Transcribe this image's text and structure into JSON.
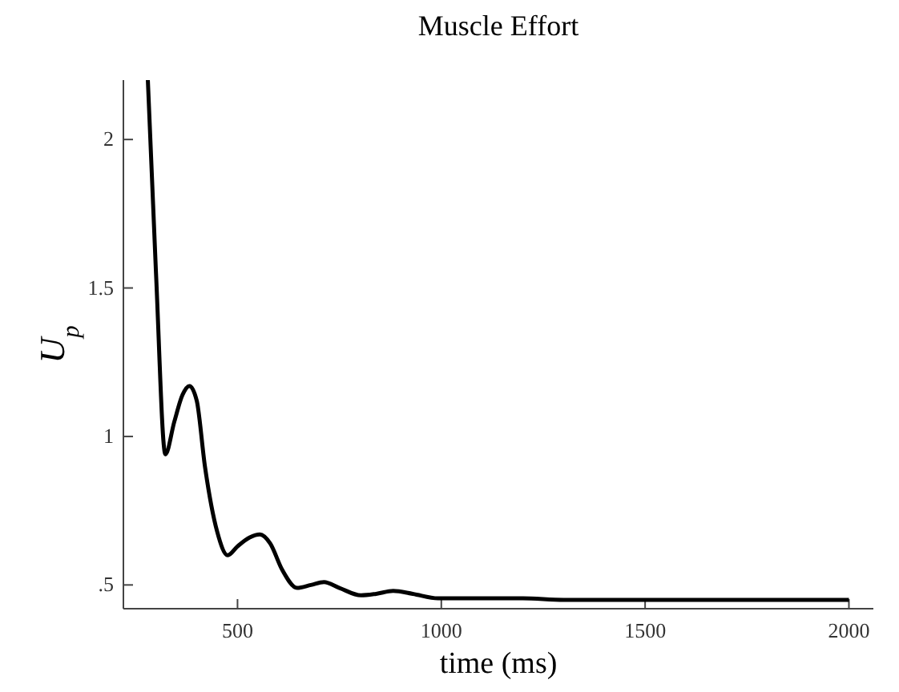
{
  "chart_data": {
    "type": "line",
    "title": "Muscle Effort",
    "xlabel": "time (ms)",
    "ylabel": "U$_{p}$",
    "x": [
      280,
      300,
      323,
      345,
      365,
      382,
      400,
      420,
      450,
      476,
      500,
      530,
      555,
      580,
      610,
      646,
      680,
      712,
      750,
      803,
      840,
      882,
      930,
      992,
      1100,
      1200,
      1300,
      1500,
      1700,
      2000
    ],
    "series": [
      {
        "color": "#000000",
        "values": [
          2.2,
          1.55,
          0.94,
          1.05,
          1.14,
          1.17,
          1.12,
          0.9,
          0.68,
          0.6,
          0.63,
          0.66,
          0.67,
          0.64,
          0.55,
          0.49,
          0.5,
          0.51,
          0.49,
          0.465,
          0.47,
          0.48,
          0.47,
          0.455,
          0.455,
          0.455,
          0.45,
          0.45,
          0.45,
          0.45
        ]
      }
    ],
    "xlim": [
      220,
      2060
    ],
    "ylim": [
      0.42,
      2.2
    ],
    "xticks": [
      500,
      1000,
      1500,
      2000
    ],
    "yticks": [
      {
        "value": 0.5,
        "label": ".5"
      },
      1,
      1.5,
      2
    ],
    "grid": false
  }
}
